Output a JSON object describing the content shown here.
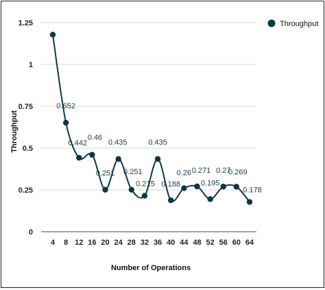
{
  "chart_data": {
    "type": "line",
    "xlabel": "Number of Operations",
    "ylabel": "Throughput",
    "ylim": [
      0,
      1.25
    ],
    "yticks": [
      0,
      0.25,
      0.5,
      0.75,
      1,
      1.25
    ],
    "ytick_labels": [
      "0",
      "0.25",
      "0.5",
      "0.75",
      "1",
      "1.25"
    ],
    "grid": true,
    "smooth": true,
    "legend_position": "top-right",
    "x": [
      4,
      8,
      12,
      16,
      20,
      24,
      28,
      32,
      36,
      40,
      44,
      48,
      52,
      56,
      60,
      64
    ],
    "series": [
      {
        "name": "Throughput",
        "color": "#0d3745",
        "values": [
          1.178,
          0.652,
          0.442,
          0.46,
          0.251,
          0.435,
          0.251,
          0.215,
          0.435,
          0.188,
          0.26,
          0.271,
          0.195,
          0.27,
          0.269,
          0.178
        ],
        "data_labels": [
          "",
          "0.652",
          "0.442",
          "0.46",
          "0.251",
          "0.435",
          "0.251",
          "0.215",
          "0.435",
          "0.188",
          "0.26",
          "0.271",
          "0.195",
          "0.27",
          "0.269",
          "0.178"
        ]
      }
    ]
  }
}
